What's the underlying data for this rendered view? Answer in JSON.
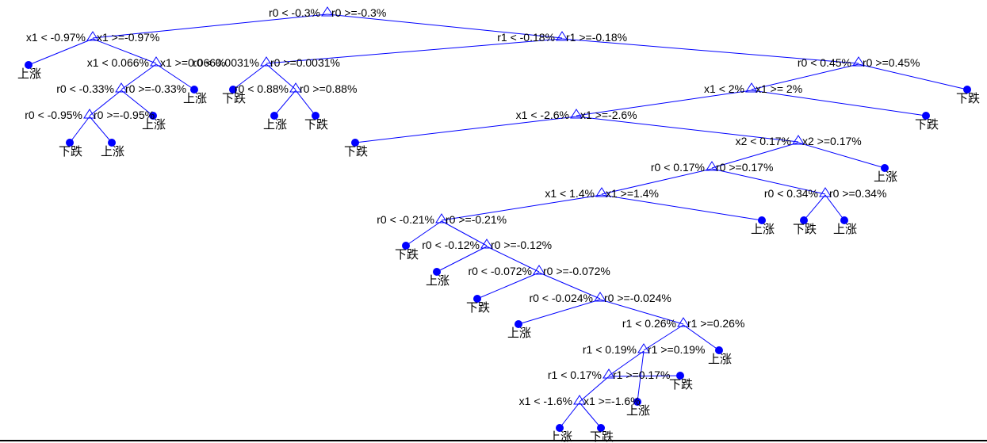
{
  "colors": {
    "tree": "#0000ff",
    "text": "#000000",
    "background": "#ffffff"
  },
  "node_icons": {
    "split": "triangle-icon",
    "leaf": "dot-icon"
  },
  "tree": {
    "n1": {
      "left": "r0 < -0.3%",
      "right": "r0 >=-0.3%"
    },
    "n2": {
      "left": "x1 < -0.97%",
      "right": "x1 >=-0.97%"
    },
    "n3": {
      "left": "r1 < -0.18%",
      "right": "r1 >=-0.18%"
    },
    "n4": {
      "left": "x1 < 0.066%",
      "right": "x1 >=0.066%"
    },
    "n5": {
      "left": "r0 < -0.33%",
      "right": "r0 >=-0.33%"
    },
    "n6": {
      "left": "r0 < -0.95%",
      "right": "r0 >=-0.95%"
    },
    "n7": {
      "left": "r0 < 0.0031%",
      "right": "r0 >=0.0031%"
    },
    "n8": {
      "left": "r0 < 0.88%",
      "right": "r0 >=0.88%"
    },
    "n9": {
      "left": "r0 < 0.45%",
      "right": "r0 >=0.45%"
    },
    "n10": {
      "left": "x1 < 2%",
      "right": "x1 >= 2%"
    },
    "n11": {
      "left": "x1 < -2.6%",
      "right": "x1 >=-2.6%"
    },
    "n12": {
      "left": "x2 < 0.17%",
      "right": "x2 >=0.17%"
    },
    "n13": {
      "left": "r0 < 0.17%",
      "right": "r0 >=0.17%"
    },
    "n14": {
      "left": "r0 < 0.34%",
      "right": "r0 >=0.34%"
    },
    "n15": {
      "left": "x1 < 1.4%",
      "right": "x1 >=1.4%"
    },
    "n16": {
      "left": "r0 < -0.21%",
      "right": "r0 >=-0.21%"
    },
    "n17": {
      "left": "r0 < -0.12%",
      "right": "r0 >=-0.12%"
    },
    "n18": {
      "left": "r0 < -0.072%",
      "right": "r0 >=-0.072%"
    },
    "n19": {
      "left": "r0 < -0.024%",
      "right": "r0 >=-0.024%"
    },
    "n20": {
      "left": "r1 < 0.26%",
      "right": "r1 >=0.26%"
    },
    "n21": {
      "left": "r1 < 0.19%",
      "right": "r1 >=0.19%"
    },
    "n22": {
      "left": "r1 < 0.17%",
      "right": "r1 >=0.17%"
    },
    "n23": {
      "left": "x1 < -1.6%",
      "right": "x1 >=-1.6%"
    }
  },
  "leaves": {
    "l1": "上涨",
    "l2": "上涨",
    "l3": "上涨",
    "l4": "下跌",
    "l5": "上涨",
    "l6": "下跌",
    "l7": "上涨",
    "l8": "下跌",
    "l9": "下跌",
    "l10": "下跌",
    "l11": "下跌",
    "l12": "上涨",
    "l13": "上涨",
    "l14": "下跌",
    "l15": "上涨",
    "l16": "下跌",
    "l17": "上涨",
    "l18": "下跌",
    "l19": "上涨",
    "l20": "上涨",
    "l21": "下跌",
    "l22": "上涨",
    "l23": "上涨",
    "l24": "下跌"
  }
}
